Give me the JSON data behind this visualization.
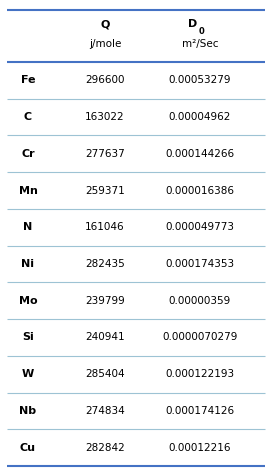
{
  "rows": [
    [
      "Fe",
      "296600",
      "0.00053279"
    ],
    [
      "C",
      "163022",
      "0.00004962"
    ],
    [
      "Cr",
      "277637",
      "0.000144266"
    ],
    [
      "Mn",
      "259371",
      "0.000016386"
    ],
    [
      "N",
      "161046",
      "0.000049773"
    ],
    [
      "Ni",
      "282435",
      "0.000174353"
    ],
    [
      "Mo",
      "239799",
      "0.00000359"
    ],
    [
      "Si",
      "240941",
      "0.0000070279"
    ],
    [
      "W",
      "285404",
      "0.000122193"
    ],
    [
      "Nb",
      "274834",
      "0.000174126"
    ],
    [
      "Cu",
      "282842",
      "0.00012216"
    ]
  ],
  "header_line_color": "#4472C4",
  "row_line_color": "#9DC3D4",
  "background_color": "#FFFFFF",
  "text_color": "#000000",
  "fig_width": 2.72,
  "fig_height": 4.73,
  "dpi": 100
}
